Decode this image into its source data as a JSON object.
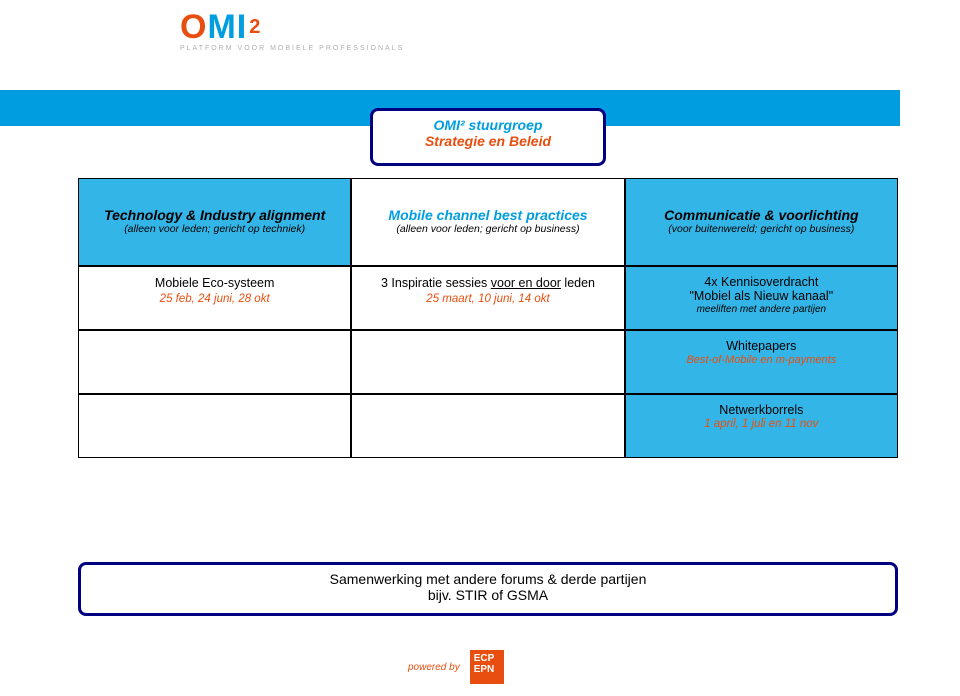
{
  "logo": {
    "letters": {
      "o": "O",
      "m": "M",
      "i": "I",
      "sq": "2"
    },
    "subtitle": "PLATFORM VOOR MOBIELE PROFESSIONALS",
    "colors": {
      "orange": "#e84e0f",
      "blue": "#009ee0",
      "grey": "#b0b0b0"
    }
  },
  "title_box": {
    "line1": "OMI² stuurgroep",
    "line2": "Strategie en Beleid"
  },
  "table": {
    "header_bg": "#33b5e7",
    "columns": [
      {
        "title": "Technology & Industry alignment",
        "sub": "(alleen voor leden; gericht op techniek)",
        "bg": "#33b5e7",
        "title_color": "#000000"
      },
      {
        "title": "Mobile channel best practices",
        "sub": "(alleen voor leden; gericht op business)",
        "bg": "#ffffff",
        "title_color": "#009ee0"
      },
      {
        "title": "Communicatie & voorlichting",
        "sub": "(voor buitenwereld; gericht op business)",
        "bg": "#33b5e7",
        "title_color": "#000000"
      }
    ],
    "rows": [
      [
        {
          "title": "Mobiele Eco-systeem",
          "dates": "25 feb, 24 juni, 28 okt",
          "bg": "#ffffff"
        },
        {
          "title_pre": "3 Inspiratie sessies ",
          "title_ul": "voor en door",
          "title_post": " leden",
          "dates": "25 maart, 10 juni, 14 okt",
          "bg": "#ffffff"
        },
        {
          "title_line1": "4x Kennisoverdracht",
          "title_line2": "\"Mobiel als Nieuw kanaal\"",
          "small": "meeliften met andere partijen",
          "bg": "#33b5e7"
        }
      ],
      [
        {
          "empty": true,
          "bg": "#ffffff"
        },
        {
          "empty": true,
          "bg": "#ffffff"
        },
        {
          "title": "Whitepapers",
          "orange_it": "Best-of-Mobile en m-payments",
          "bg": "#33b5e7"
        }
      ],
      [
        {
          "empty": true,
          "bg": "#ffffff"
        },
        {
          "empty": true,
          "bg": "#ffffff"
        },
        {
          "title": "Netwerkborrels",
          "dates": "1 april, 1 juli en 11 nov",
          "bg": "#33b5e7"
        }
      ]
    ]
  },
  "footer_box": {
    "line1": "Samenwerking met andere forums & derde partijen",
    "line2": "bijv. STIR of GSMA"
  },
  "powered": {
    "text": "powered by",
    "badge_line1": "ECP",
    "badge_line2": "EPN"
  }
}
